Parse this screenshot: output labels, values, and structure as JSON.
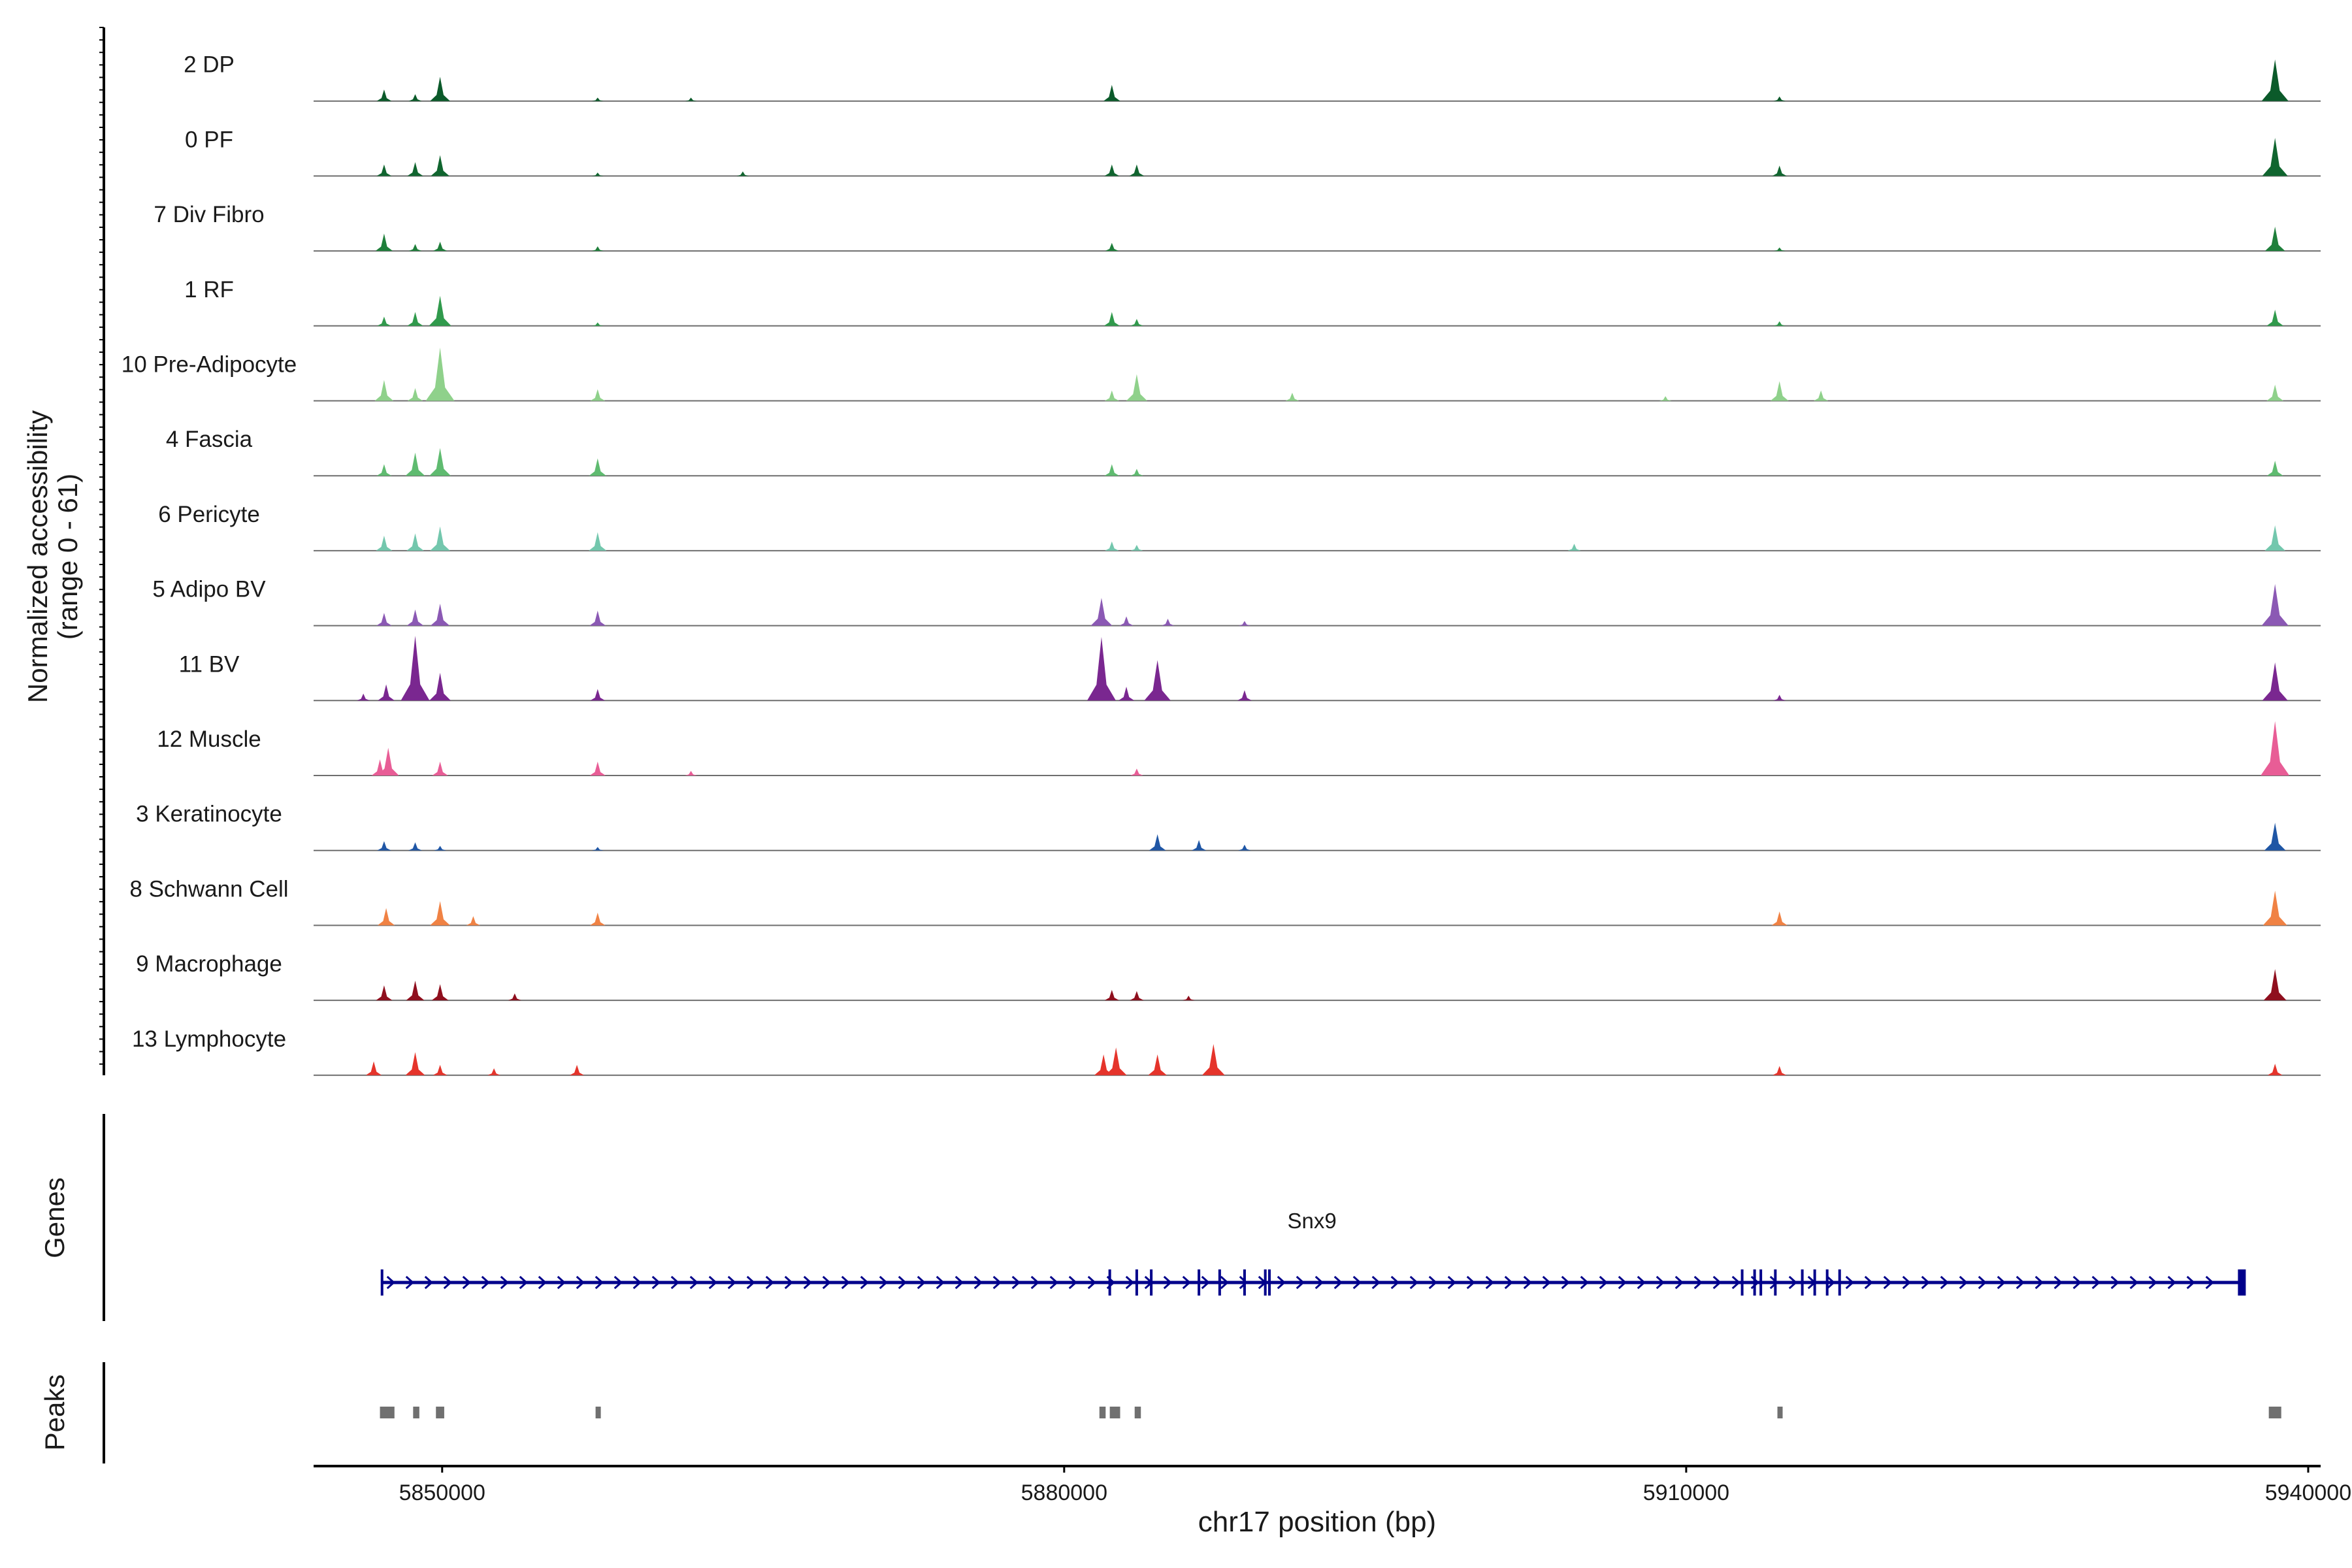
{
  "chart_data": {
    "type": "area",
    "title": "",
    "ylabel": "Normalized accessibility",
    "ylabel_range": "(range 0 - 61)",
    "ylim": [
      0,
      61
    ],
    "xlabel": "chr17 position (bp)",
    "xlim": [
      5843800,
      5940600
    ],
    "x_ticks": [
      5850000,
      5880000,
      5910000,
      5940000
    ],
    "x_tick_labels": [
      "5850000",
      "5880000",
      "5910000",
      "5940000"
    ],
    "tracks": [
      {
        "name": "2 DP",
        "color": "#0b5a2a",
        "peaks": [
          [
            5847200,
            10
          ],
          [
            5848700,
            6
          ],
          [
            5849900,
            21
          ],
          [
            5857500,
            3
          ],
          [
            5862000,
            3
          ],
          [
            5882300,
            14
          ],
          [
            5914500,
            4
          ],
          [
            5938400,
            36
          ]
        ]
      },
      {
        "name": "0 PF",
        "color": "#10652f",
        "peaks": [
          [
            5847200,
            10
          ],
          [
            5848700,
            12
          ],
          [
            5849900,
            18
          ],
          [
            5857500,
            3
          ],
          [
            5864500,
            4
          ],
          [
            5882300,
            10
          ],
          [
            5883500,
            10
          ],
          [
            5914500,
            9
          ],
          [
            5938400,
            33
          ]
        ]
      },
      {
        "name": "7 Div Fibro",
        "color": "#1f7f3b",
        "peaks": [
          [
            5847200,
            15
          ],
          [
            5848700,
            6
          ],
          [
            5849900,
            8
          ],
          [
            5857500,
            4
          ],
          [
            5882300,
            7
          ],
          [
            5914500,
            3
          ],
          [
            5938400,
            21
          ]
        ]
      },
      {
        "name": "1 RF",
        "color": "#309a4c",
        "peaks": [
          [
            5847200,
            8
          ],
          [
            5848700,
            12
          ],
          [
            5849900,
            26
          ],
          [
            5857500,
            3
          ],
          [
            5882300,
            12
          ],
          [
            5883500,
            6
          ],
          [
            5914500,
            4
          ],
          [
            5938400,
            14
          ]
        ]
      },
      {
        "name": "10 Pre-Adipocyte",
        "color": "#8fd18b",
        "peaks": [
          [
            5847200,
            18
          ],
          [
            5848700,
            11
          ],
          [
            5849900,
            46
          ],
          [
            5857500,
            10
          ],
          [
            5882300,
            9
          ],
          [
            5883500,
            23
          ],
          [
            5891000,
            7
          ],
          [
            5909000,
            4
          ],
          [
            5914500,
            17
          ],
          [
            5916500,
            9
          ],
          [
            5938400,
            14
          ]
        ]
      },
      {
        "name": "4 Fascia",
        "color": "#5fbb70",
        "peaks": [
          [
            5847200,
            10
          ],
          [
            5848700,
            20
          ],
          [
            5849900,
            24
          ],
          [
            5857500,
            15
          ],
          [
            5882300,
            10
          ],
          [
            5883500,
            6
          ],
          [
            5938400,
            13
          ]
        ]
      },
      {
        "name": "6 Pericyte",
        "color": "#73c7ad",
        "peaks": [
          [
            5847200,
            13
          ],
          [
            5848700,
            15
          ],
          [
            5849900,
            21
          ],
          [
            5857500,
            16
          ],
          [
            5882300,
            8
          ],
          [
            5883500,
            5
          ],
          [
            5904600,
            6
          ],
          [
            5938400,
            22
          ]
        ]
      },
      {
        "name": "5 Adipo BV",
        "color": "#8b59b4",
        "peaks": [
          [
            5847200,
            11
          ],
          [
            5848700,
            14
          ],
          [
            5849900,
            19
          ],
          [
            5857500,
            13
          ],
          [
            5881800,
            24
          ],
          [
            5883000,
            8
          ],
          [
            5885000,
            6
          ],
          [
            5888700,
            4
          ],
          [
            5938400,
            36
          ]
        ]
      },
      {
        "name": "11 BV",
        "color": "#7a2790",
        "peaks": [
          [
            5846200,
            6
          ],
          [
            5847300,
            14
          ],
          [
            5848700,
            56
          ],
          [
            5849900,
            24
          ],
          [
            5857500,
            10
          ],
          [
            5881800,
            55
          ],
          [
            5883000,
            12
          ],
          [
            5884500,
            35
          ],
          [
            5888700,
            9
          ],
          [
            5914500,
            5
          ],
          [
            5938400,
            33
          ]
        ]
      },
      {
        "name": "12 Muscle",
        "color": "#e85d96",
        "peaks": [
          [
            5847000,
            14
          ],
          [
            5847400,
            24
          ],
          [
            5849900,
            12
          ],
          [
            5857500,
            12
          ],
          [
            5862000,
            4
          ],
          [
            5883500,
            6
          ],
          [
            5938400,
            47
          ]
        ]
      },
      {
        "name": "3 Keratinocyte",
        "color": "#1f56a5",
        "peaks": [
          [
            5847200,
            8
          ],
          [
            5848700,
            7
          ],
          [
            5849900,
            4
          ],
          [
            5857500,
            3
          ],
          [
            5884500,
            14
          ],
          [
            5886500,
            9
          ],
          [
            5888700,
            5
          ],
          [
            5938400,
            24
          ]
        ]
      },
      {
        "name": "8 Schwann Cell",
        "color": "#f08244",
        "peaks": [
          [
            5847300,
            15
          ],
          [
            5849900,
            21
          ],
          [
            5851500,
            8
          ],
          [
            5857500,
            11
          ],
          [
            5914500,
            12
          ],
          [
            5938400,
            30
          ]
        ]
      },
      {
        "name": "9 Macrophage",
        "color": "#8f0f1e",
        "peaks": [
          [
            5847200,
            13
          ],
          [
            5848700,
            17
          ],
          [
            5849900,
            14
          ],
          [
            5853500,
            6
          ],
          [
            5882300,
            9
          ],
          [
            5883500,
            8
          ],
          [
            5886000,
            4
          ],
          [
            5938400,
            27
          ]
        ]
      },
      {
        "name": "13 Lymphocyte",
        "color": "#e5342b",
        "peaks": [
          [
            5846700,
            12
          ],
          [
            5848700,
            20
          ],
          [
            5849900,
            9
          ],
          [
            5852500,
            6
          ],
          [
            5856500,
            9
          ],
          [
            5881900,
            18
          ],
          [
            5882500,
            24
          ],
          [
            5884500,
            18
          ],
          [
            5887200,
            27
          ],
          [
            5914500,
            8
          ],
          [
            5938400,
            10
          ]
        ]
      }
    ],
    "gene": {
      "name": "Snx9",
      "start": 5847100,
      "end": 5936800,
      "strand": "+",
      "exons": [
        5847100,
        5882200,
        5883500,
        5884200,
        5886500,
        5887500,
        5888700,
        5889700,
        5889900,
        5912700,
        5913300,
        5913600,
        5914300,
        5915600,
        5916200,
        5916800,
        5917400
      ]
    },
    "peaks_track": [
      [
        5847000,
        5847700
      ],
      [
        5848600,
        5848900
      ],
      [
        5849700,
        5850100
      ],
      [
        5857400,
        5857600
      ],
      [
        5881700,
        5882000
      ],
      [
        5882200,
        5882700
      ],
      [
        5883400,
        5883700
      ],
      [
        5914400,
        5914600
      ],
      [
        5938100,
        5938700
      ]
    ],
    "panel_labels": {
      "genes": "Genes",
      "peaks": "Peaks"
    },
    "colors": {
      "gene": "#00008b",
      "peak": "#707070",
      "baseline": "#6e6e6e",
      "axis": "#000000"
    }
  }
}
